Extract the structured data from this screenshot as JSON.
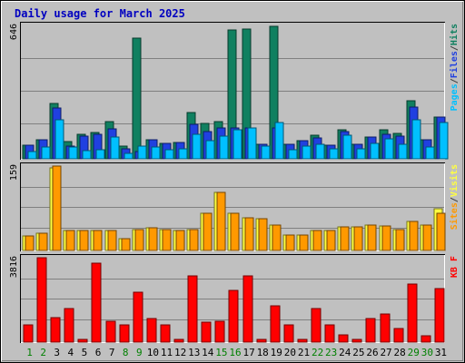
{
  "chart_data": {
    "type": "bar",
    "title": "Daily usage for March 2025",
    "days": [
      "1",
      "2",
      "3",
      "4",
      "5",
      "6",
      "7",
      "8",
      "9",
      "10",
      "11",
      "12",
      "13",
      "14",
      "15",
      "16",
      "17",
      "18",
      "19",
      "20",
      "21",
      "22",
      "23",
      "24",
      "25",
      "26",
      "27",
      "28",
      "29",
      "30",
      "31"
    ],
    "weekend_days": [
      "1",
      "2",
      "8",
      "9",
      "15",
      "16",
      "22",
      "23",
      "29",
      "30"
    ],
    "panels": [
      {
        "id": "hits",
        "ymax_label": "646",
        "ymax": 646,
        "legend": [
          {
            "text": "Pages",
            "color": "#00c0ff"
          },
          {
            "text": "/",
            "color": "#404040"
          },
          {
            "text": "Files",
            "color": "#2040e0"
          },
          {
            "text": "/",
            "color": "#404040"
          },
          {
            "text": "Hits",
            "color": "#108060"
          }
        ],
        "series": [
          {
            "name": "Hits",
            "color": "#108060",
            "values": [
              64,
              94,
              266,
              82,
              120,
              127,
              178,
              60,
              584,
              93,
              76,
              77,
              225,
              171,
              180,
              624,
              630,
              70,
              640,
              70,
              90,
              115,
              67,
              140,
              70,
              105,
              140,
              125,
              280,
              94,
              202
            ]
          },
          {
            "name": "Files",
            "color": "#2040e0",
            "values": [
              64,
              94,
              246,
              62,
              110,
              120,
              147,
              48,
              35,
              93,
              76,
              77,
              166,
              131,
              150,
              150,
              150,
              70,
              150,
              70,
              90,
              100,
              67,
              131,
              70,
              105,
              120,
              110,
              250,
              94,
              202
            ]
          },
          {
            "name": "Pages",
            "color": "#00c0ff",
            "values": [
              35,
              55,
              190,
              55,
              40,
              46,
              106,
              27,
              60,
              55,
              45,
              47,
              120,
              86,
              110,
              140,
              150,
              60,
              176,
              45,
              62,
              70,
              50,
              113,
              47,
              73,
              98,
              70,
              188,
              56,
              176
            ]
          }
        ]
      },
      {
        "id": "visits",
        "ymax_label": "159",
        "ymax": 159,
        "legend": [
          {
            "text": "Sites",
            "color": "#ff9900"
          },
          {
            "text": "/",
            "color": "#404040"
          },
          {
            "text": "Visits",
            "color": "#ffff40"
          }
        ],
        "series": [
          {
            "name": "Visits",
            "color": "#ffff40",
            "values": [
              27,
              33,
              155,
              38,
              38,
              38,
              38,
              22,
              40,
              43,
              40,
              38,
              40,
              70,
              110,
              70,
              62,
              60,
              48,
              29,
              29,
              38,
              38,
              45,
              45,
              48,
              46,
              40,
              55,
              48,
              78
            ]
          },
          {
            "name": "Sites",
            "color": "#ff9900",
            "values": [
              27,
              33,
              159,
              38,
              38,
              38,
              38,
              22,
              40,
              43,
              40,
              38,
              40,
              70,
              110,
              70,
              62,
              60,
              48,
              29,
              29,
              38,
              38,
              45,
              45,
              48,
              46,
              40,
              55,
              48,
              70
            ]
          }
        ]
      },
      {
        "id": "kbytes",
        "ymax_label": "3816",
        "ymax": 3816,
        "legend": [
          {
            "text": "KB F",
            "color": "#ff0000"
          }
        ],
        "series": [
          {
            "name": "KB F",
            "color": "#ff0000",
            "values": [
              800,
              3816,
              1100,
              1500,
              130,
              3550,
              950,
              780,
              2240,
              1080,
              800,
              120,
              3000,
              900,
              950,
              2350,
              3000,
              140,
              1650,
              780,
              130,
              1500,
              780,
              320,
              110,
              1050,
              1280,
              600,
              2620,
              280,
              2420
            ]
          }
        ]
      }
    ],
    "grid": true
  }
}
